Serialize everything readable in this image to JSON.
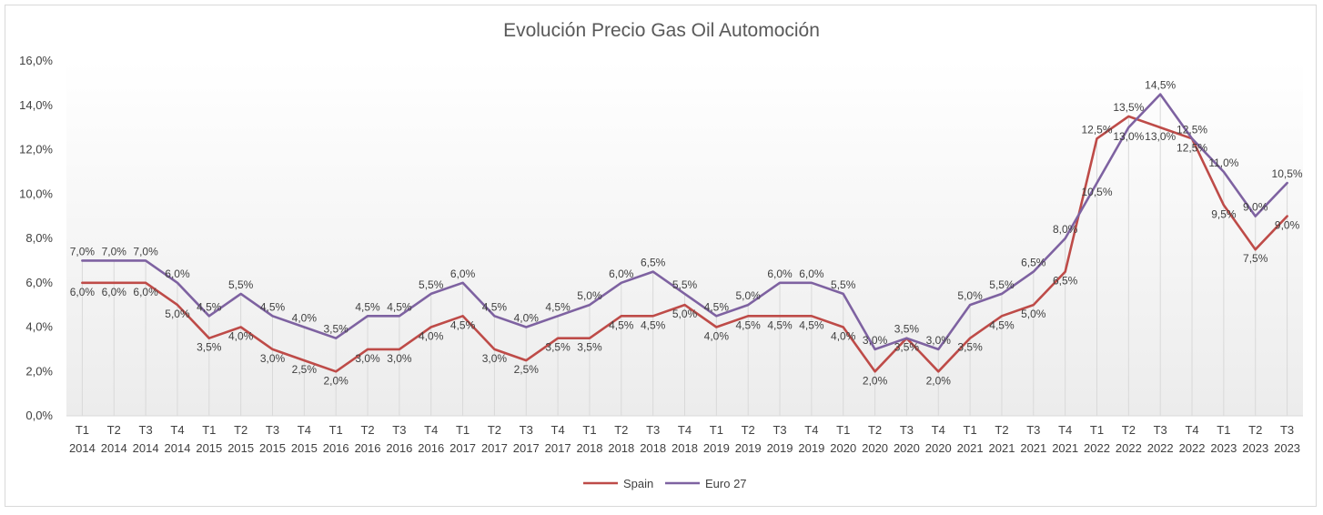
{
  "chart_data": {
    "type": "line",
    "title": "Evolución Precio Gas Oil Automoción",
    "xlabel": "",
    "ylabel": "",
    "ylim": [
      0,
      16
    ],
    "y_ticks": [
      "0,0%",
      "2,0%",
      "4,0%",
      "6,0%",
      "8,0%",
      "10,0%",
      "12,0%",
      "14,0%",
      "16,0%"
    ],
    "categories": [
      [
        "T1",
        "2014"
      ],
      [
        "T2",
        "2014"
      ],
      [
        "T3",
        "2014"
      ],
      [
        "T4",
        "2014"
      ],
      [
        "T1",
        "2015"
      ],
      [
        "T2",
        "2015"
      ],
      [
        "T3",
        "2015"
      ],
      [
        "T4",
        "2015"
      ],
      [
        "T1",
        "2016"
      ],
      [
        "T2",
        "2016"
      ],
      [
        "T3",
        "2016"
      ],
      [
        "T4",
        "2016"
      ],
      [
        "T1",
        "2017"
      ],
      [
        "T2",
        "2017"
      ],
      [
        "T3",
        "2017"
      ],
      [
        "T4",
        "2017"
      ],
      [
        "T1",
        "2018"
      ],
      [
        "T2",
        "2018"
      ],
      [
        "T3",
        "2018"
      ],
      [
        "T4",
        "2018"
      ],
      [
        "T1",
        "2019"
      ],
      [
        "T2",
        "2019"
      ],
      [
        "T3",
        "2019"
      ],
      [
        "T4",
        "2019"
      ],
      [
        "T1",
        "2020"
      ],
      [
        "T2",
        "2020"
      ],
      [
        "T3",
        "2020"
      ],
      [
        "T4",
        "2020"
      ],
      [
        "T1",
        "2021"
      ],
      [
        "T2",
        "2021"
      ],
      [
        "T3",
        "2021"
      ],
      [
        "T4",
        "2021"
      ],
      [
        "T1",
        "2022"
      ],
      [
        "T2",
        "2022"
      ],
      [
        "T3",
        "2022"
      ],
      [
        "T4",
        "2022"
      ],
      [
        "T1",
        "2023"
      ],
      [
        "T2",
        "2023"
      ],
      [
        "T3",
        "2023"
      ]
    ],
    "series": [
      {
        "name": "Spain",
        "color": "#be4b48",
        "values": [
          6.0,
          6.0,
          6.0,
          5.0,
          3.5,
          4.0,
          3.0,
          2.5,
          2.0,
          3.0,
          3.0,
          4.0,
          4.5,
          3.0,
          2.5,
          3.5,
          3.5,
          4.5,
          4.5,
          5.0,
          4.0,
          4.5,
          4.5,
          4.5,
          4.0,
          2.0,
          3.5,
          2.0,
          3.5,
          4.5,
          5.0,
          6.5,
          12.5,
          13.5,
          13.0,
          12.5,
          9.5,
          7.5,
          9.0
        ],
        "labels": [
          "6,0%",
          "6,0%",
          "6,0%",
          "5,0%",
          "3,5%",
          "4,0%",
          "3,0%",
          "2,5%",
          "2,0%",
          "3,0%",
          "3,0%",
          "4,0%",
          "4,5%",
          "3,0%",
          "2,5%",
          "3,5%",
          "3,5%",
          "4,5%",
          "4,5%",
          "5,0%",
          "4,0%",
          "4,5%",
          "4,5%",
          "4,5%",
          "4,0%",
          "2,0%",
          "3,5%",
          "2,0%",
          "3,5%",
          "4,5%",
          "5,0%",
          "6,5%",
          "12,5%",
          "13,5%",
          "13,0%",
          "12,5%",
          "9,5%",
          "7,5%",
          "9,0%"
        ]
      },
      {
        "name": "Euro 27",
        "color": "#7e62a1",
        "values": [
          7.0,
          7.0,
          7.0,
          6.0,
          4.5,
          5.5,
          4.5,
          4.0,
          3.5,
          4.5,
          4.5,
          5.5,
          6.0,
          4.5,
          4.0,
          4.5,
          5.0,
          6.0,
          6.5,
          5.5,
          4.5,
          5.0,
          6.0,
          6.0,
          5.5,
          3.0,
          3.5,
          3.0,
          5.0,
          5.5,
          6.5,
          8.0,
          10.5,
          13.0,
          14.5,
          12.5,
          11.0,
          9.0,
          10.5
        ],
        "labels": [
          "7,0%",
          "7,0%",
          "7,0%",
          "6,0%",
          "4,5%",
          "5,5%",
          "4,5%",
          "4,0%",
          "3,5%",
          "4,5%",
          "4,5%",
          "5,5%",
          "6,0%",
          "4,5%",
          "4,0%",
          "4,5%",
          "5,0%",
          "6,0%",
          "6,5%",
          "5,5%",
          "4,5%",
          "5,0%",
          "6,0%",
          "6,0%",
          "5,5%",
          "3,0%",
          "3,5%",
          "3,0%",
          "5,0%",
          "5,5%",
          "6,5%",
          "8,0%",
          "10,5%",
          "13,0%",
          "14,5%",
          "12,5%",
          "11,0%",
          "9,0%",
          "10,5%"
        ]
      }
    ],
    "grid": "vertical drop lines",
    "legend_position": "bottom"
  }
}
